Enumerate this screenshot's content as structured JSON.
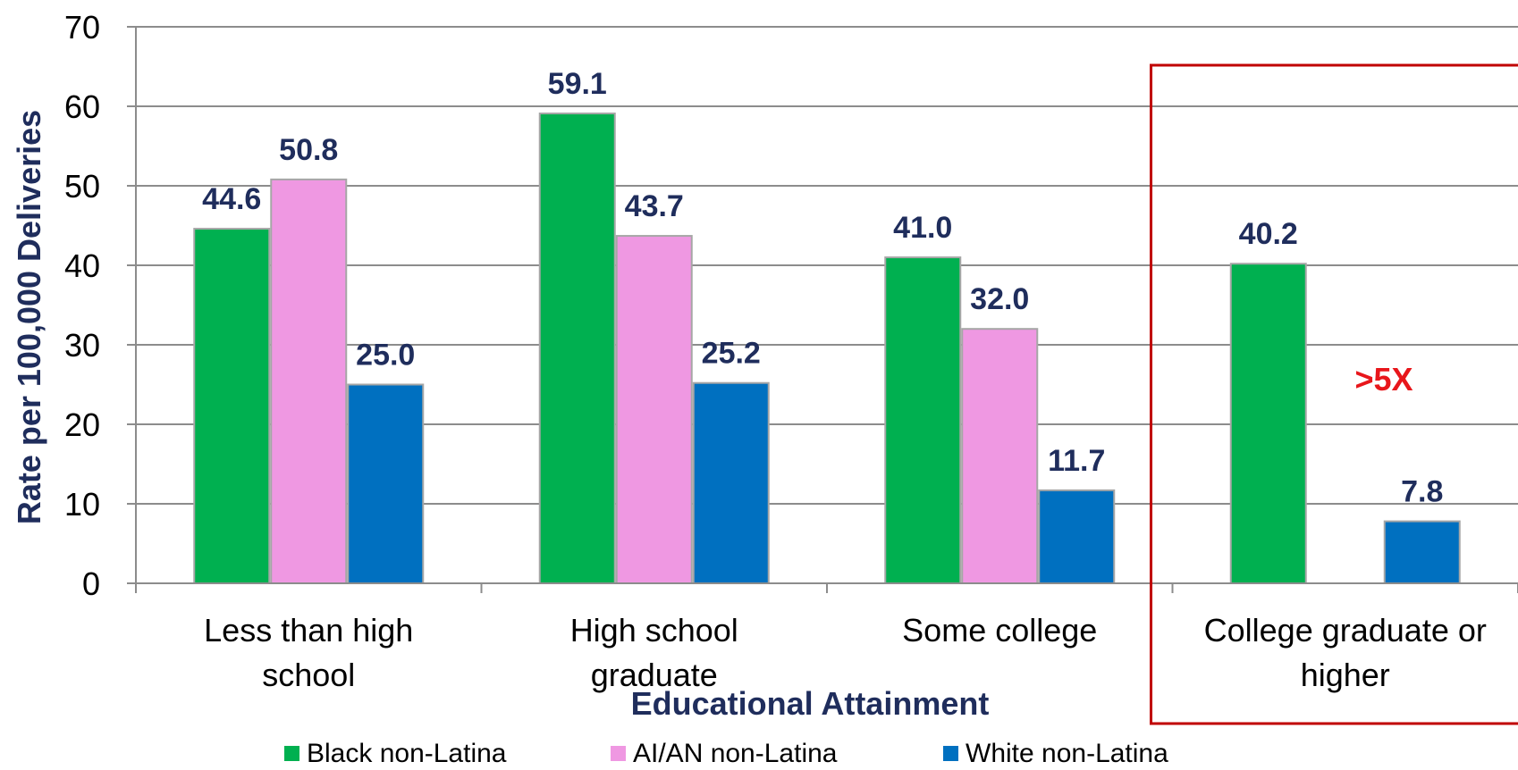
{
  "chart_data": {
    "type": "bar",
    "xlabel": "Educational Attainment",
    "ylabel": "Rate per 100,000 Deliveries",
    "ylim": [
      0,
      70
    ],
    "yticks": [
      0,
      10,
      20,
      30,
      40,
      50,
      60,
      70
    ],
    "grid": true,
    "legend_position": "bottom",
    "categories": [
      [
        "Less than high",
        "school"
      ],
      [
        "High school",
        "graduate"
      ],
      [
        "Some college"
      ],
      [
        "College graduate or",
        "higher"
      ]
    ],
    "series": [
      {
        "name": "Black non-Latina",
        "color": "#00b050",
        "values": [
          44.6,
          59.1,
          41.0,
          40.2
        ],
        "labels": [
          "44.6",
          "59.1",
          "41.0",
          "40.2"
        ]
      },
      {
        "name": "AI/AN non-Latina",
        "color": "#ef98e2",
        "values": [
          50.8,
          43.7,
          32.0,
          null
        ],
        "labels": [
          "50.8",
          "43.7",
          "32.0",
          ""
        ]
      },
      {
        "name": "White non-Latina",
        "color": "#0070c0",
        "values": [
          25.0,
          25.2,
          11.7,
          7.8
        ],
        "labels": [
          "25.0",
          "25.2",
          "11.7",
          "7.8"
        ]
      }
    ],
    "annotations": [
      {
        "text": ">5X",
        "color": "#e8161b",
        "highlight_category": 3,
        "box_color": "#c00000"
      }
    ]
  }
}
